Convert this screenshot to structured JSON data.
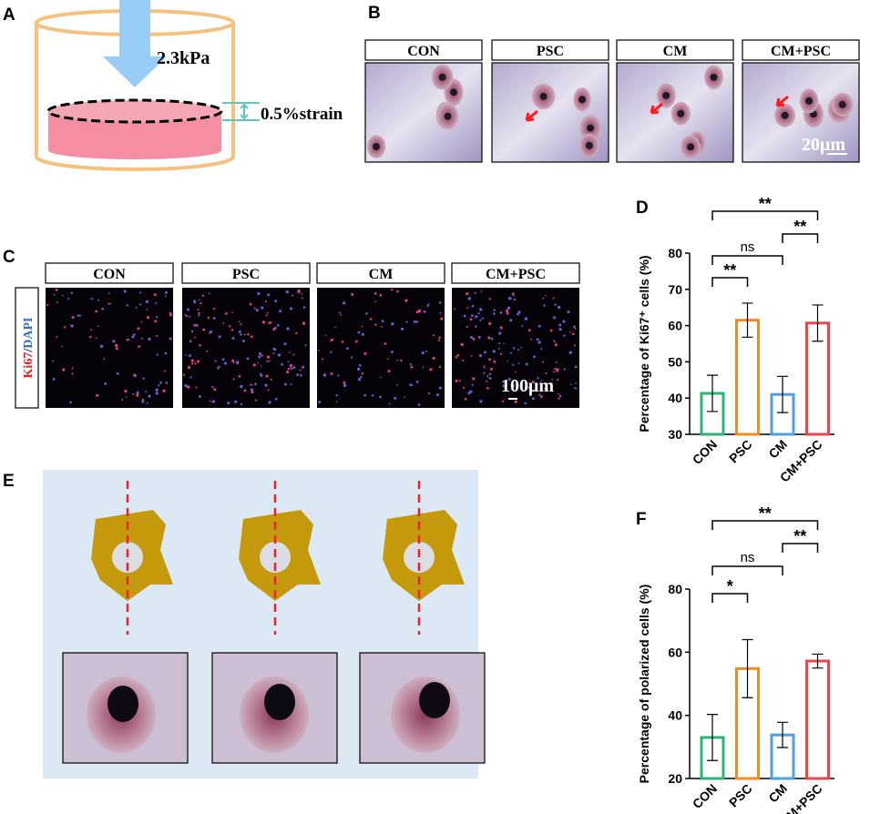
{
  "panel_labels": [
    "A",
    "B",
    "C",
    "D",
    "E",
    "F"
  ],
  "panel_a": {
    "pressure": "2.3kPa",
    "strain": "0.5%strain"
  },
  "panel_b": {
    "groups": [
      "CON",
      "PSC",
      "CM",
      "CM+PSC"
    ],
    "scale_bar": "20μm"
  },
  "panel_c": {
    "groups": [
      "CON",
      "PSC",
      "CM",
      "CM+PSC"
    ],
    "stain": [
      "Ki67",
      "/",
      "DAPI"
    ],
    "scale_bar": "100μm"
  },
  "chart_data": [
    {
      "type": "bar",
      "ylabel": "Percentage of Ki67⁺ cells (%)",
      "categories": [
        "CON",
        "PSC",
        "CM",
        "CM+PSC"
      ],
      "values": [
        41.3,
        61.5,
        41,
        60.7
      ],
      "errors": [
        5,
        4.7,
        5,
        5
      ],
      "colors": [
        "#2bb673",
        "#f28c1e",
        "#4d9fe6",
        "#e9474a"
      ],
      "ylim": [
        30,
        80
      ],
      "yticks": [
        30,
        40,
        50,
        60,
        70,
        80
      ],
      "brackets": [
        {
          "text": "**",
          "between": [
            "CON",
            "PSC"
          ]
        },
        {
          "text": "ns",
          "between": [
            "CON",
            "CM"
          ]
        },
        {
          "text": "**",
          "between": [
            "CM",
            "CM+PSC"
          ]
        },
        {
          "text": "**",
          "between": [
            "CON",
            "CM+PSC"
          ]
        }
      ]
    },
    {
      "type": "bar",
      "ylabel": "Percentage of polarized cells (%)",
      "categories": [
        "CON",
        "PSC",
        "CM",
        "CM+PSC"
      ],
      "values": [
        33,
        54.8,
        33.8,
        57.2
      ],
      "errors": [
        7.3,
        9.2,
        4,
        2.2
      ],
      "colors": [
        "#2bb673",
        "#f28c1e",
        "#4d9fe6",
        "#e9474a"
      ],
      "ylim": [
        20,
        80
      ],
      "yticks": [
        20,
        40,
        60,
        80
      ],
      "brackets": [
        {
          "text": "*",
          "between": [
            "CON",
            "PSC"
          ]
        },
        {
          "text": "ns",
          "between": [
            "CON",
            "CM"
          ]
        },
        {
          "text": "**",
          "between": [
            "CM",
            "CM+PSC"
          ]
        },
        {
          "text": "**",
          "between": [
            "CON",
            "CM+PSC"
          ]
        }
      ]
    }
  ]
}
